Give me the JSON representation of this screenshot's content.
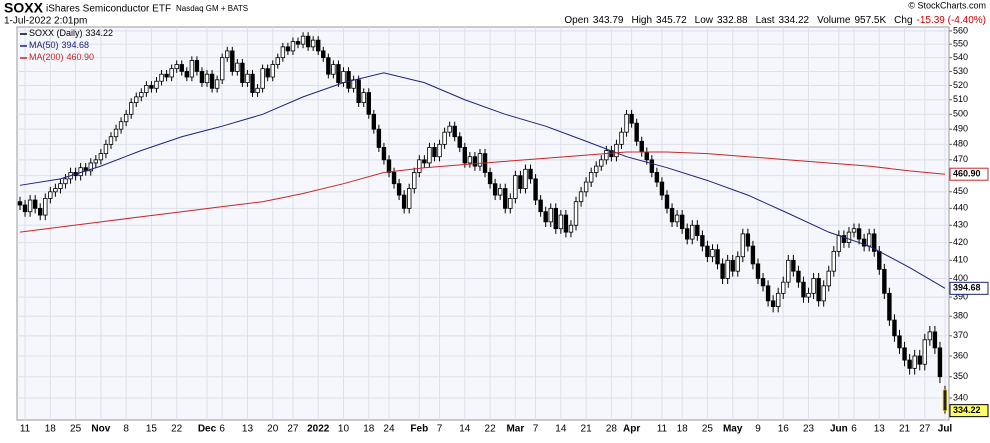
{
  "chart_data": {
    "type": "candlestick",
    "title": "SOXX",
    "subtitle": "iShares Semiconductor ETF",
    "exchange": "Nasdaq GM + BATS",
    "date": "1-Jul-2022 2:01pm",
    "source": "© StockCharts.com",
    "quote_labels": {
      "open": "Open",
      "high": "High",
      "low": "Low",
      "last": "Last",
      "volume": "Volume",
      "chg": "Chg"
    },
    "volume": "957.5K",
    "chg": "-15.39 (-4.40%)",
    "price_name": "SOXX (Daily)",
    "log": true,
    "grid": true,
    "ylim": [
      330,
      563
    ],
    "yticks": [
      340,
      350,
      360,
      370,
      380,
      390,
      400,
      410,
      420,
      430,
      440,
      450,
      460,
      470,
      480,
      490,
      500,
      510,
      520,
      530,
      540,
      550,
      560
    ],
    "categories": [
      null,
      "11",
      null,
      null,
      null,
      null,
      "18",
      null,
      null,
      null,
      null,
      "25",
      null,
      null,
      null,
      null,
      "Nov",
      null,
      null,
      null,
      null,
      "8",
      null,
      null,
      null,
      null,
      "15",
      null,
      null,
      null,
      null,
      "22",
      null,
      null,
      null,
      null,
      null,
      "Dec",
      null,
      null,
      "6",
      null,
      null,
      null,
      null,
      "13",
      null,
      null,
      null,
      null,
      "20",
      null,
      null,
      null,
      "27",
      null,
      null,
      null,
      null,
      "2022",
      null,
      null,
      null,
      null,
      "10",
      null,
      null,
      null,
      null,
      "18",
      null,
      null,
      null,
      "24",
      null,
      null,
      null,
      null,
      null,
      "Feb",
      null,
      null,
      null,
      "7",
      null,
      null,
      null,
      null,
      "14",
      null,
      null,
      null,
      null,
      "22",
      null,
      null,
      null,
      null,
      "Mar",
      null,
      null,
      null,
      "7",
      null,
      null,
      null,
      null,
      "14",
      null,
      null,
      null,
      null,
      "21",
      null,
      null,
      null,
      null,
      "28",
      null,
      null,
      null,
      "Apr",
      null,
      null,
      null,
      null,
      null,
      "11",
      null,
      null,
      null,
      "18",
      null,
      null,
      null,
      null,
      "25",
      null,
      null,
      null,
      null,
      "May",
      null,
      null,
      null,
      null,
      "9",
      null,
      null,
      null,
      null,
      "16",
      null,
      null,
      null,
      null,
      "23",
      null,
      null,
      null,
      null,
      null,
      "Jun",
      null,
      null,
      "6",
      null,
      null,
      null,
      null,
      "13",
      null,
      null,
      null,
      null,
      "21",
      null,
      null,
      null,
      "27",
      null,
      null,
      null,
      "Jul"
    ],
    "open": [
      444,
      442,
      438,
      445,
      440,
      436,
      446,
      450,
      452,
      455,
      458,
      462,
      460,
      465,
      463,
      468,
      470,
      474,
      480,
      485,
      490,
      495,
      500,
      508,
      512,
      515,
      520,
      518,
      523,
      528,
      526,
      532,
      535,
      530,
      526,
      538,
      530,
      522,
      528,
      518,
      524,
      540,
      545,
      530,
      536,
      522,
      528,
      515,
      518,
      532,
      526,
      535,
      540,
      548,
      545,
      552,
      550,
      556,
      548,
      553,
      545,
      540,
      528,
      535,
      522,
      530,
      518,
      524,
      508,
      515,
      500,
      490,
      478,
      470,
      462,
      455,
      448,
      440,
      452,
      462,
      470,
      468,
      478,
      472,
      480,
      488,
      492,
      485,
      478,
      468,
      472,
      466,
      474,
      462,
      455,
      448,
      452,
      440,
      446,
      460,
      452,
      464,
      458,
      445,
      438,
      432,
      440,
      428,
      436,
      426,
      430,
      444,
      450,
      456,
      462,
      466,
      470,
      476,
      472,
      480,
      488,
      500,
      494,
      482,
      475,
      470,
      462,
      456,
      448,
      440,
      432,
      436,
      428,
      422,
      430,
      424,
      418,
      412,
      416,
      408,
      400,
      410,
      404,
      412,
      425,
      418,
      408,
      400,
      396,
      388,
      385,
      392,
      398,
      410,
      404,
      398,
      390,
      392,
      400,
      388,
      396,
      404,
      415,
      424,
      420,
      426,
      428,
      422,
      418,
      425,
      415,
      405,
      392,
      378,
      370,
      364,
      358,
      354,
      360,
      356,
      368,
      372,
      364,
      343.79
    ],
    "high": [
      447,
      445,
      448,
      448,
      443,
      449,
      453,
      455,
      458,
      461,
      465,
      465,
      468,
      468,
      471,
      473,
      477,
      483,
      488,
      493,
      498,
      503,
      511,
      515,
      518,
      523,
      523,
      526,
      531,
      531,
      535,
      538,
      538,
      533,
      541,
      541,
      533,
      531,
      531,
      527,
      543,
      548,
      548,
      539,
      539,
      531,
      531,
      521,
      535,
      535,
      538,
      543,
      551,
      551,
      555,
      555,
      559,
      559,
      556,
      556,
      548,
      543,
      538,
      538,
      533,
      533,
      527,
      527,
      518,
      518,
      503,
      493,
      481,
      473,
      465,
      458,
      451,
      455,
      465,
      473,
      473,
      481,
      481,
      483,
      491,
      495,
      495,
      488,
      481,
      475,
      475,
      477,
      477,
      465,
      458,
      455,
      455,
      449,
      463,
      463,
      467,
      467,
      461,
      448,
      441,
      443,
      443,
      439,
      439,
      433,
      447,
      453,
      459,
      465,
      469,
      473,
      479,
      479,
      483,
      491,
      503,
      503,
      497,
      485,
      478,
      473,
      465,
      459,
      451,
      443,
      439,
      439,
      431,
      433,
      433,
      427,
      421,
      419,
      419,
      411,
      413,
      413,
      415,
      428,
      428,
      421,
      411,
      403,
      399,
      391,
      395,
      401,
      413,
      413,
      407,
      401,
      395,
      403,
      403,
      399,
      407,
      418,
      427,
      427,
      429,
      431,
      431,
      425,
      428,
      428,
      418,
      408,
      395,
      381,
      373,
      367,
      361,
      363,
      363,
      371,
      375,
      375,
      367,
      345.72
    ],
    "low": [
      439,
      435,
      435,
      437,
      433,
      433,
      443,
      447,
      449,
      452,
      455,
      457,
      457,
      460,
      460,
      465,
      467,
      471,
      477,
      482,
      487,
      492,
      497,
      505,
      509,
      512,
      515,
      515,
      520,
      523,
      523,
      529,
      527,
      523,
      523,
      527,
      519,
      519,
      515,
      515,
      521,
      537,
      527,
      527,
      519,
      519,
      512,
      512,
      515,
      523,
      523,
      532,
      537,
      542,
      542,
      547,
      547,
      545,
      545,
      542,
      537,
      525,
      525,
      519,
      519,
      515,
      515,
      505,
      505,
      497,
      487,
      475,
      467,
      459,
      452,
      445,
      437,
      437,
      449,
      459,
      465,
      465,
      469,
      469,
      477,
      485,
      482,
      475,
      465,
      465,
      463,
      463,
      459,
      452,
      445,
      445,
      437,
      437,
      443,
      449,
      449,
      455,
      442,
      435,
      429,
      429,
      425,
      425,
      423,
      423,
      427,
      441,
      447,
      453,
      459,
      463,
      467,
      469,
      469,
      477,
      485,
      491,
      479,
      472,
      467,
      459,
      453,
      445,
      437,
      429,
      429,
      425,
      419,
      419,
      421,
      415,
      409,
      409,
      405,
      397,
      397,
      401,
      401,
      409,
      415,
      405,
      397,
      393,
      385,
      382,
      382,
      389,
      395,
      401,
      395,
      387,
      387,
      389,
      385,
      385,
      393,
      401,
      412,
      417,
      417,
      423,
      419,
      415,
      415,
      412,
      402,
      389,
      375,
      367,
      361,
      355,
      351,
      351,
      353,
      353,
      365,
      361,
      347,
      332.88
    ],
    "close": [
      442,
      438,
      445,
      440,
      436,
      446,
      450,
      452,
      455,
      458,
      462,
      460,
      465,
      463,
      468,
      470,
      474,
      480,
      485,
      490,
      495,
      500,
      508,
      512,
      515,
      520,
      518,
      523,
      528,
      526,
      532,
      535,
      530,
      526,
      538,
      530,
      522,
      528,
      518,
      524,
      540,
      545,
      530,
      536,
      522,
      528,
      515,
      518,
      532,
      526,
      535,
      540,
      548,
      545,
      552,
      550,
      556,
      548,
      553,
      545,
      540,
      528,
      535,
      522,
      530,
      518,
      524,
      508,
      515,
      500,
      490,
      478,
      470,
      462,
      455,
      448,
      440,
      452,
      462,
      470,
      468,
      478,
      472,
      480,
      488,
      492,
      485,
      478,
      468,
      472,
      466,
      474,
      462,
      455,
      448,
      452,
      440,
      446,
      460,
      452,
      464,
      458,
      445,
      438,
      432,
      440,
      428,
      436,
      426,
      430,
      444,
      450,
      456,
      462,
      466,
      470,
      476,
      472,
      480,
      488,
      500,
      494,
      482,
      475,
      470,
      462,
      456,
      448,
      440,
      432,
      436,
      428,
      422,
      430,
      424,
      418,
      412,
      416,
      408,
      400,
      410,
      404,
      412,
      425,
      418,
      408,
      400,
      396,
      388,
      385,
      392,
      398,
      410,
      404,
      398,
      390,
      392,
      400,
      388,
      396,
      404,
      415,
      424,
      420,
      426,
      428,
      422,
      418,
      425,
      415,
      405,
      392,
      378,
      370,
      364,
      358,
      354,
      360,
      356,
      368,
      372,
      364,
      350,
      334.22
    ],
    "series": [
      {
        "name": "MA(50)",
        "color": "#1a237e",
        "x": [
          0,
          8,
          16,
          24,
          32,
          40,
          48,
          56,
          64,
          72,
          80,
          88,
          96,
          104,
          112,
          120,
          128,
          136,
          144,
          152,
          160,
          168,
          176,
          183
        ],
        "values": [
          454,
          458,
          466,
          476,
          485,
          492,
          500,
          512,
          522,
          529,
          522,
          510,
          500,
          492,
          482,
          472,
          465,
          457,
          448,
          437,
          426,
          418,
          406,
          394.68
        ]
      },
      {
        "name": "MA(200)",
        "color": "#c62828",
        "x": [
          0,
          8,
          16,
          24,
          32,
          40,
          48,
          56,
          64,
          72,
          80,
          88,
          96,
          104,
          112,
          120,
          128,
          136,
          144,
          152,
          160,
          168,
          176,
          183
        ],
        "values": [
          426,
          429,
          432,
          435,
          438,
          441,
          444,
          449,
          455,
          462,
          465,
          467,
          469,
          471,
          473,
          475,
          475,
          474,
          472,
          470,
          468,
          466,
          463,
          460.9
        ],
        "value_label": "460.90"
      }
    ]
  }
}
